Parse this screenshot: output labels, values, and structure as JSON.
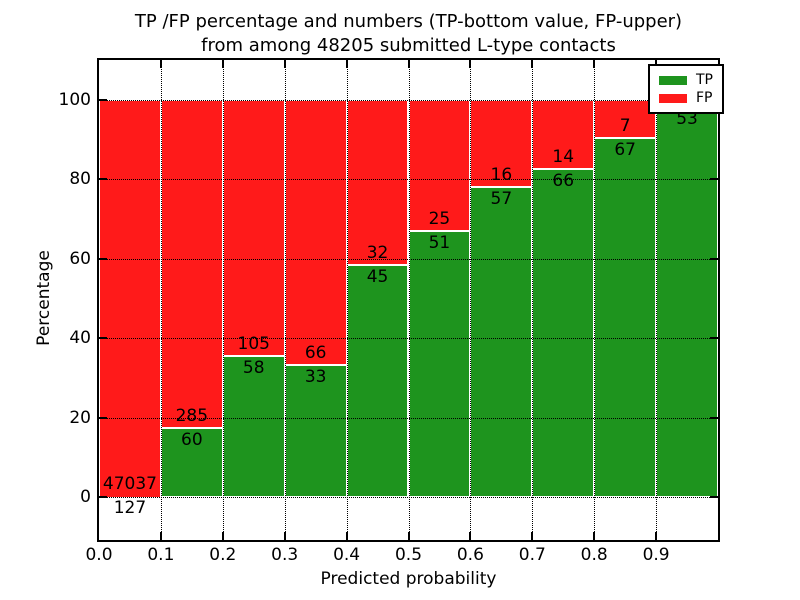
{
  "title": {
    "line1": "TP /FP percentage and numbers (TP-bottom value, FP-upper)",
    "line2": "from among 48205 submitted L-type contacts"
  },
  "axes": {
    "x": {
      "label": "Predicted probability",
      "tick_labels": [
        "0.0",
        "0.1",
        "0.2",
        "0.3",
        "0.4",
        "0.5",
        "0.6",
        "0.7",
        "0.8",
        "0.9"
      ],
      "range": [
        0.0,
        1.0
      ]
    },
    "y": {
      "label": "Percentage",
      "tick_labels": [
        "0",
        "20",
        "40",
        "60",
        "80",
        "100"
      ],
      "tick_values": [
        0,
        20,
        40,
        60,
        80,
        100
      ],
      "shown_range": [
        -10.8,
        110.2
      ],
      "grid": "dotted"
    }
  },
  "legend": {
    "position": "upper-right",
    "items": [
      {
        "label": "TP",
        "color": "#1e941e"
      },
      {
        "label": "FP",
        "color": "#ff1a1a"
      }
    ]
  },
  "chart_data": {
    "type": "bar",
    "stacked": true,
    "normalized_to_percent": 100,
    "bin_starts": [
      0.0,
      0.1,
      0.2,
      0.3,
      0.4,
      0.5,
      0.6,
      0.7,
      0.8,
      0.9
    ],
    "bin_width": 0.1,
    "series": [
      {
        "name": "TP",
        "color": "#1e941e",
        "counts": [
          127,
          60,
          58,
          33,
          45,
          51,
          57,
          66,
          67,
          53
        ]
      },
      {
        "name": "FP",
        "color": "#ff1a1a",
        "counts": [
          47037,
          285,
          105,
          66,
          32,
          25,
          16,
          14,
          7,
          null
        ]
      }
    ],
    "tp_percent": [
      0.27,
      17.39,
      35.58,
      33.33,
      58.44,
      67.11,
      78.08,
      82.5,
      90.54,
      98.15
    ],
    "title": "TP /FP percentage and numbers (TP-bottom value, FP-upper) from among 48205 submitted L-type contacts",
    "xlabel": "Predicted probability",
    "ylabel": "Percentage"
  }
}
